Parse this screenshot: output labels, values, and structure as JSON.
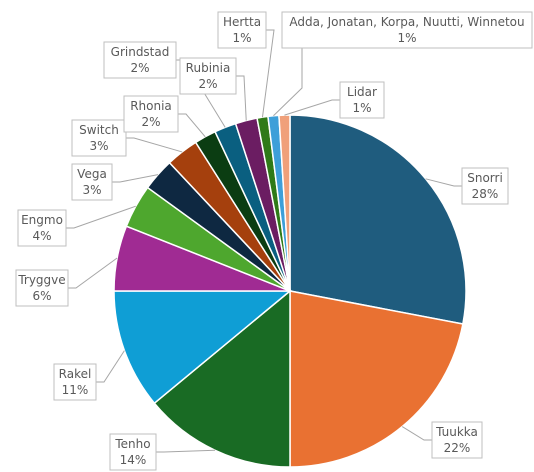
{
  "chart_data": {
    "type": "pie",
    "slices": [
      {
        "name": "Snorri",
        "value": 28,
        "label": "28%",
        "color": "#1f5c7e"
      },
      {
        "name": "Tuukka",
        "value": 22,
        "label": "22%",
        "color": "#e97132"
      },
      {
        "name": "Tenho",
        "value": 14,
        "label": "14%",
        "color": "#196b24"
      },
      {
        "name": "Rakel",
        "value": 11,
        "label": "11%",
        "color": "#0f9ed5"
      },
      {
        "name": "Tryggve",
        "value": 6,
        "label": "6%",
        "color": "#a02b93"
      },
      {
        "name": "Engmo",
        "value": 4,
        "label": "4%",
        "color": "#4ea72e"
      },
      {
        "name": "Vega",
        "value": 3,
        "label": "3%",
        "color": "#0e2841"
      },
      {
        "name": "Switch",
        "value": 3,
        "label": "3%",
        "color": "#a5400d"
      },
      {
        "name": "Rhonia",
        "value": 2,
        "label": "2%",
        "color": "#0b3d12"
      },
      {
        "name": "Grindstad",
        "value": 2,
        "label": "2%",
        "color": "#0a5f80"
      },
      {
        "name": "Rubinia",
        "value": 2,
        "label": "2%",
        "color": "#6b1d62"
      },
      {
        "name": "Hertta",
        "value": 1,
        "label": "1%",
        "color": "#2f7a18"
      },
      {
        "name": "Adda, Jonatan, Korpa, Nuutti, Winnetou",
        "value": 1,
        "label": "1%",
        "color": "#3d9fd9"
      },
      {
        "name": "Lidar",
        "value": 1,
        "label": "1%",
        "color": "#f0a07a"
      }
    ],
    "title": "",
    "legend": "none",
    "data_labels": "category name and percentage with leader lines"
  }
}
